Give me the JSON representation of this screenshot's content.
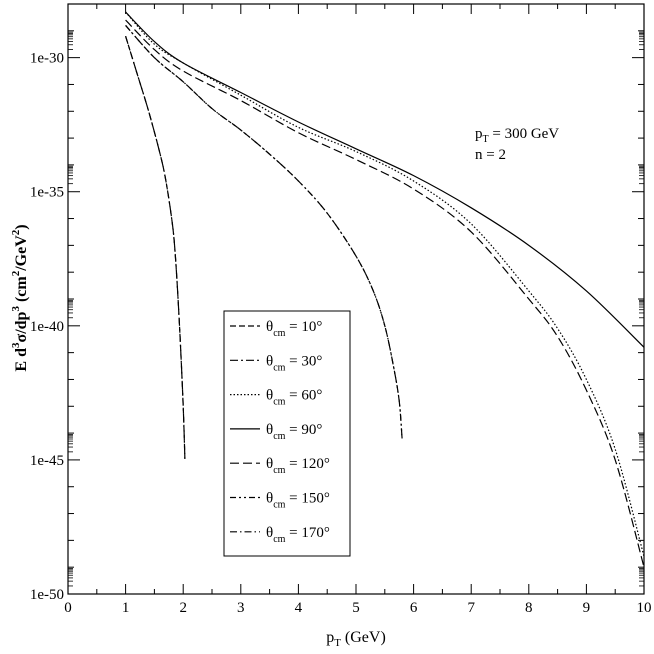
{
  "chart_data": {
    "type": "line",
    "title": "",
    "xlabel": "p_T (GeV)",
    "ylabel": "E d^3σ/dp^3 (cm^2/GeV^2)",
    "xlim": [
      0,
      10
    ],
    "ylim_log10": [
      -50,
      -28
    ],
    "y_scale": "log",
    "grid": false,
    "x_ticks": [
      0,
      1,
      2,
      3,
      4,
      5,
      6,
      7,
      8,
      9,
      10
    ],
    "y_tick_labels": [
      "1e-30",
      "1e-35",
      "1e-40",
      "1e-45",
      "1e-50"
    ],
    "y_tick_values_log10": [
      -30,
      -35,
      -40,
      -45,
      -50
    ],
    "annotation": {
      "pt_prefix": "p",
      "pt_sub": "T",
      "pt_value": " = 300 GeV",
      "n_line": "n = 2"
    },
    "legend_position": "lower-center",
    "series": [
      {
        "name": "θcm = 10°",
        "label_theta": "θ",
        "label_sub": "cm",
        "label_value": " = 10°",
        "dash": "6,3",
        "x": [
          1.0,
          1.2,
          1.4,
          1.6,
          1.7,
          1.8,
          1.85,
          1.9,
          1.95,
          2.0,
          2.03
        ],
        "y_log10": [
          -29.2,
          -30.6,
          -32.0,
          -33.6,
          -34.6,
          -36.0,
          -37.0,
          -38.6,
          -40.6,
          -43.0,
          -45.0
        ]
      },
      {
        "name": "θcm = 30°",
        "label_theta": "θ",
        "label_sub": "cm",
        "label_value": " = 30°",
        "dash": "8,3,2,3",
        "x": [
          1.0,
          1.2,
          1.4,
          1.6,
          1.7,
          1.8,
          1.85,
          1.9,
          1.95,
          2.0,
          2.03
        ],
        "y_log10": [
          -29.2,
          -30.6,
          -32.0,
          -33.6,
          -34.6,
          -36.0,
          -37.0,
          -38.6,
          -40.6,
          -43.0,
          -45.0
        ]
      },
      {
        "name": "θcm = 60°",
        "label_theta": "θ",
        "label_sub": "cm",
        "label_value": " = 60°",
        "dash": "1.5,2",
        "x": [
          1,
          1.5,
          2,
          3,
          4,
          5,
          6,
          7,
          8,
          8.5,
          9,
          9.5,
          10
        ],
        "y_log10": [
          -28.3,
          -29.5,
          -30.2,
          -31.4,
          -32.6,
          -33.5,
          -34.6,
          -36.2,
          -38.7,
          -40.1,
          -42.0,
          -44.6,
          -48.6
        ]
      },
      {
        "name": "θcm = 90°",
        "label_theta": "θ",
        "label_sub": "cm",
        "label_value": " = 90°",
        "dash": "",
        "x": [
          1,
          1.5,
          2,
          3,
          4,
          5,
          6,
          7,
          8,
          9,
          10
        ],
        "y_log10": [
          -28.3,
          -29.4,
          -30.2,
          -31.3,
          -32.4,
          -33.4,
          -34.4,
          -35.6,
          -37.0,
          -38.7,
          -40.8
        ]
      },
      {
        "name": "θcm = 120°",
        "label_theta": "θ",
        "label_sub": "cm",
        "label_value": " = 120°",
        "dash": "9,4",
        "x": [
          1,
          1.5,
          2,
          3,
          4,
          5,
          6,
          7,
          8,
          8.5,
          9,
          9.5,
          10
        ],
        "y_log10": [
          -28.6,
          -29.7,
          -30.5,
          -31.6,
          -32.8,
          -33.8,
          -34.9,
          -36.5,
          -39.0,
          -40.4,
          -42.4,
          -45.0,
          -49.0
        ]
      },
      {
        "name": "θcm = 150°",
        "label_theta": "θ",
        "label_sub": "cm",
        "label_value": " = 150°",
        "dash": "6,3,2,3,2,3",
        "x": [
          1.0,
          1.5,
          2.0,
          2.5,
          3.0,
          3.5,
          4.0,
          4.5,
          5.0,
          5.3,
          5.5,
          5.65,
          5.75,
          5.8
        ],
        "y_log10": [
          -28.8,
          -30.0,
          -30.9,
          -31.9,
          -32.7,
          -33.6,
          -34.6,
          -35.8,
          -37.4,
          -38.7,
          -40.0,
          -41.5,
          -42.8,
          -44.2
        ]
      },
      {
        "name": "θcm = 170°",
        "label_theta": "θ",
        "label_sub": "cm",
        "label_value": " = 170°",
        "dash": "7,3,1.5,3",
        "x": [
          1.0,
          1.5,
          2.0,
          2.5,
          3.0,
          3.5,
          4.0,
          4.5,
          5.0,
          5.3,
          5.5,
          5.65,
          5.75,
          5.8
        ],
        "y_log10": [
          -28.8,
          -30.0,
          -30.9,
          -31.9,
          -32.7,
          -33.6,
          -34.6,
          -35.8,
          -37.4,
          -38.7,
          -40.0,
          -41.5,
          -42.8,
          -44.2
        ]
      }
    ]
  }
}
